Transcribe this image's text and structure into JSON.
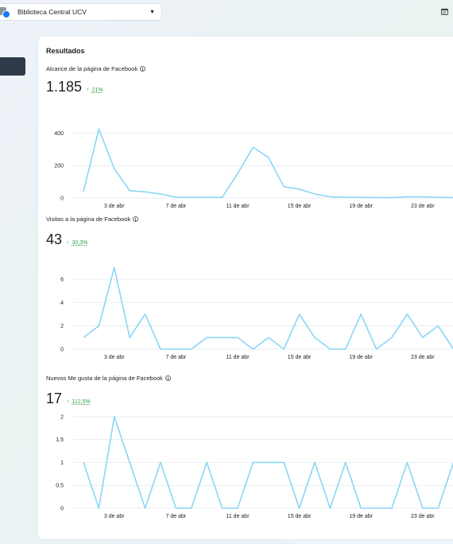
{
  "page_selector": {
    "name": "Biblioteca Central UCV"
  },
  "card": {
    "title": "Resultados"
  },
  "metrics": [
    {
      "label": "Alcance de la página de Facebook",
      "value": "1.185",
      "change": "21%"
    },
    {
      "label": "Visitas a la página de Facebook",
      "value": "43",
      "change": "30,3%"
    },
    {
      "label": "Nuevos Me gusta de la página de Facebook",
      "value": "17",
      "change": "112,5%"
    }
  ],
  "chart_data": [
    {
      "type": "line",
      "x_tick_labels": [
        "3 de abr",
        "7 de abr",
        "11 de abr",
        "15 de abr",
        "19 de abr",
        "23 de abr"
      ],
      "yticks": [
        0,
        200,
        400
      ],
      "ylim": [
        0,
        460
      ],
      "color": "#8ad6f7",
      "values": [
        40,
        425,
        180,
        45,
        38,
        25,
        5,
        5,
        5,
        4,
        150,
        312,
        250,
        70,
        55,
        25,
        8,
        5,
        4,
        3,
        2,
        8,
        8,
        5,
        2
      ]
    },
    {
      "type": "line",
      "x_tick_labels": [
        "3 de abr",
        "7 de abr",
        "11 de abr",
        "15 de abr",
        "19 de abr",
        "23 de abr"
      ],
      "yticks": [
        0,
        2,
        4,
        6
      ],
      "ylim": [
        0,
        6.9
      ],
      "color": "#8ad6f7",
      "values": [
        1,
        2,
        7,
        1,
        3,
        0,
        0,
        0,
        1,
        1,
        1,
        0,
        1,
        0,
        3,
        1,
        0,
        0,
        3,
        0,
        1,
        3,
        1,
        2,
        0
      ]
    },
    {
      "type": "line",
      "x_tick_labels": [
        "3 de abr",
        "7 de abr",
        "11 de abr",
        "15 de abr",
        "19 de abr",
        "23 de abr"
      ],
      "yticks": [
        0,
        0.5,
        1,
        1.5,
        2
      ],
      "ylim": [
        0,
        2.05
      ],
      "color": "#8ad6f7",
      "values": [
        1,
        0,
        2,
        1,
        0,
        1,
        0,
        0,
        1,
        0,
        0,
        1,
        1,
        1,
        0,
        1,
        0,
        1,
        0,
        0,
        0,
        1,
        0,
        0,
        1
      ]
    }
  ]
}
